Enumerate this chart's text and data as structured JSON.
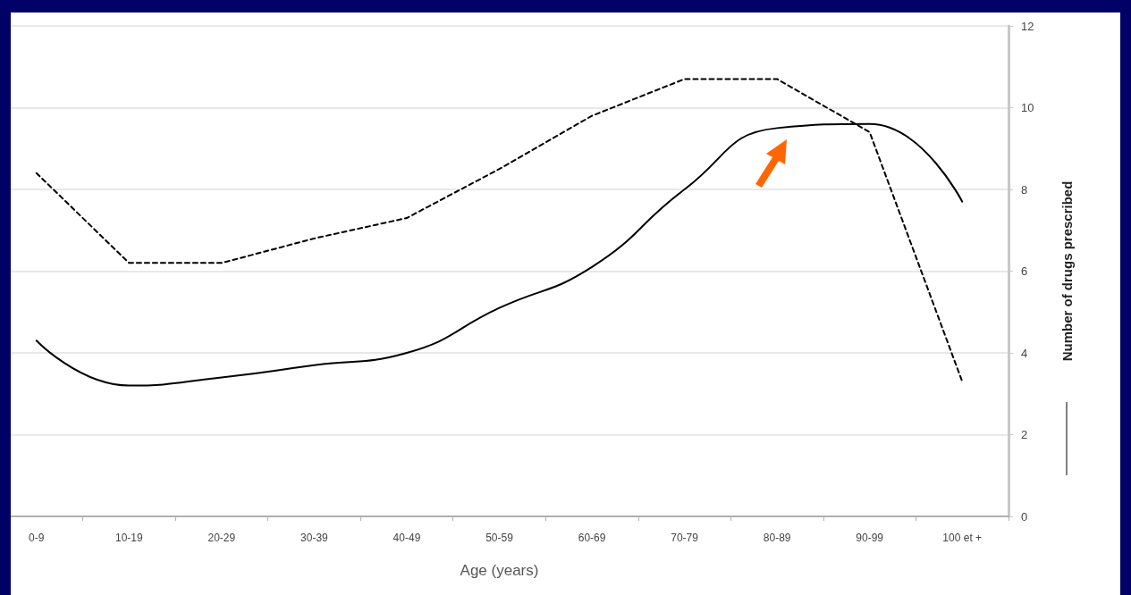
{
  "chart_data": {
    "type": "line",
    "xlabel": "Age (years)",
    "ylabel": "Number of drugs prescribed",
    "categories": [
      "0-9",
      "10-19",
      "20-29",
      "30-39",
      "40-49",
      "50-59",
      "60-69",
      "70-79",
      "80-89",
      "90-99",
      "100 et +"
    ],
    "series": [
      {
        "color": "#000000",
        "line_style": "dashed",
        "values": [
          8.4,
          6.2,
          6.2,
          6.8,
          7.3,
          8.5,
          9.8,
          10.7,
          10.7,
          9.4,
          3.3
        ]
      },
      {
        "color": "#000000",
        "line_style": "solid",
        "values": [
          4.3,
          3.2,
          3.4,
          3.7,
          4.0,
          5.1,
          6.1,
          8.0,
          9.5,
          9.6,
          7.7
        ]
      }
    ],
    "ylim": [
      0,
      12
    ],
    "yticks": [
      0,
      2,
      4,
      6,
      8,
      10,
      12
    ],
    "grid": "y",
    "marker": "none"
  }
}
